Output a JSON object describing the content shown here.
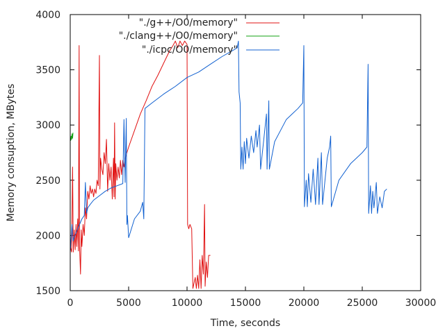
{
  "chart_data": {
    "type": "line",
    "title": "",
    "xlabel": "Time, seconds",
    "ylabel": "Memory consuption, MBytes",
    "xlim": [
      0,
      30000
    ],
    "ylim": [
      1500,
      4000
    ],
    "xticks": [
      0,
      5000,
      10000,
      15000,
      20000,
      25000,
      30000
    ],
    "yticks": [
      1500,
      2000,
      2500,
      3000,
      3500,
      4000
    ],
    "legend_position": "top-left",
    "series": [
      {
        "name": "\"./g++/O0/memory\"",
        "color": "#e01010",
        "points": [
          [
            0,
            1900
          ],
          [
            120,
            1850
          ],
          [
            200,
            2620
          ],
          [
            260,
            1850
          ],
          [
            350,
            2050
          ],
          [
            420,
            1870
          ],
          [
            500,
            2100
          ],
          [
            560,
            1900
          ],
          [
            640,
            2150
          ],
          [
            700,
            1860
          ],
          [
            760,
            3720
          ],
          [
            800,
            1900
          ],
          [
            880,
            1650
          ],
          [
            940,
            2050
          ],
          [
            1000,
            1900
          ],
          [
            1100,
            2100
          ],
          [
            1200,
            2000
          ],
          [
            1300,
            2250
          ],
          [
            1400,
            2150
          ],
          [
            1500,
            2400
          ],
          [
            1600,
            2330
          ],
          [
            1700,
            2450
          ],
          [
            1800,
            2380
          ],
          [
            1900,
            2420
          ],
          [
            2000,
            2350
          ],
          [
            2100,
            2420
          ],
          [
            2200,
            2380
          ],
          [
            2300,
            2500
          ],
          [
            2400,
            2450
          ],
          [
            2500,
            3630
          ],
          [
            2540,
            2420
          ],
          [
            2600,
            2700
          ],
          [
            2700,
            2600
          ],
          [
            2800,
            2550
          ],
          [
            2900,
            2750
          ],
          [
            3000,
            2650
          ],
          [
            3100,
            2870
          ],
          [
            3200,
            2400
          ],
          [
            3300,
            2650
          ],
          [
            3400,
            2500
          ],
          [
            3500,
            2620
          ],
          [
            3600,
            2330
          ],
          [
            3700,
            2700
          ],
          [
            3750,
            2350
          ],
          [
            3800,
            3020
          ],
          [
            3850,
            2330
          ],
          [
            3900,
            2650
          ],
          [
            4000,
            2500
          ],
          [
            4100,
            2620
          ],
          [
            4200,
            2520
          ],
          [
            4300,
            2680
          ],
          [
            4400,
            2550
          ],
          [
            4500,
            2680
          ],
          [
            4600,
            2620
          ],
          [
            4700,
            2700
          ],
          [
            5000,
            2800
          ],
          [
            5500,
            2950
          ],
          [
            6000,
            3100
          ],
          [
            6500,
            3220
          ],
          [
            7000,
            3350
          ],
          [
            7500,
            3450
          ],
          [
            8000,
            3560
          ],
          [
            8500,
            3670
          ],
          [
            8800,
            3720
          ],
          [
            9000,
            3760
          ],
          [
            9200,
            3700
          ],
          [
            9400,
            3760
          ],
          [
            9600,
            3720
          ],
          [
            9800,
            3760
          ],
          [
            10000,
            3730
          ],
          [
            10050,
            2100
          ],
          [
            10150,
            2060
          ],
          [
            10250,
            2100
          ],
          [
            10400,
            2060
          ],
          [
            10500,
            1520
          ],
          [
            10700,
            1620
          ],
          [
            10800,
            1520
          ],
          [
            10900,
            1640
          ],
          [
            11000,
            1520
          ],
          [
            11100,
            1780
          ],
          [
            11200,
            1520
          ],
          [
            11300,
            1820
          ],
          [
            11400,
            1650
          ],
          [
            11500,
            2280
          ],
          [
            11550,
            1540
          ],
          [
            11650,
            1760
          ],
          [
            11750,
            1620
          ],
          [
            11850,
            1820
          ],
          [
            12000,
            1820
          ]
        ]
      },
      {
        "name": "\"./clang++/O0/memory\"",
        "color": "#10a010",
        "points": [
          [
            0,
            2880
          ],
          [
            40,
            2860
          ],
          [
            80,
            2900
          ],
          [
            120,
            2870
          ],
          [
            160,
            2920
          ],
          [
            200,
            2880
          ],
          [
            240,
            2930
          ]
        ]
      },
      {
        "name": "\"./icpc/O0/memory\"",
        "color": "#1060d0",
        "points": [
          [
            0,
            1850
          ],
          [
            150,
            2100
          ],
          [
            250,
            1950
          ],
          [
            400,
            2000
          ],
          [
            600,
            2050
          ],
          [
            800,
            2100
          ],
          [
            1000,
            2150
          ],
          [
            1200,
            2180
          ],
          [
            1300,
            2480
          ],
          [
            1400,
            2200
          ],
          [
            1500,
            2250
          ],
          [
            1700,
            2280
          ],
          [
            2000,
            2320
          ],
          [
            2500,
            2360
          ],
          [
            3000,
            2400
          ],
          [
            3500,
            2430
          ],
          [
            4000,
            2450
          ],
          [
            4500,
            2470
          ],
          [
            4600,
            3050
          ],
          [
            4700,
            2480
          ],
          [
            4800,
            3060
          ],
          [
            4850,
            2100
          ],
          [
            4900,
            2180
          ],
          [
            5000,
            1980
          ],
          [
            5500,
            2150
          ],
          [
            6000,
            2220
          ],
          [
            6200,
            2300
          ],
          [
            6300,
            2150
          ],
          [
            6400,
            3150
          ],
          [
            7000,
            3200
          ],
          [
            8000,
            3280
          ],
          [
            9000,
            3350
          ],
          [
            10000,
            3430
          ],
          [
            11000,
            3480
          ],
          [
            12000,
            3550
          ],
          [
            13000,
            3620
          ],
          [
            14000,
            3680
          ],
          [
            14300,
            3700
          ],
          [
            14400,
            3760
          ],
          [
            14450,
            3300
          ],
          [
            14550,
            3200
          ],
          [
            14600,
            2600
          ],
          [
            14700,
            2800
          ],
          [
            14800,
            2600
          ],
          [
            14900,
            2850
          ],
          [
            15000,
            2650
          ],
          [
            15100,
            2880
          ],
          [
            15300,
            2700
          ],
          [
            15500,
            2900
          ],
          [
            15700,
            2750
          ],
          [
            15900,
            2950
          ],
          [
            16000,
            2800
          ],
          [
            16200,
            3000
          ],
          [
            16300,
            2600
          ],
          [
            16600,
            2900
          ],
          [
            16800,
            3100
          ],
          [
            16850,
            2600
          ],
          [
            17000,
            3220
          ],
          [
            17050,
            2600
          ],
          [
            17500,
            2850
          ],
          [
            18000,
            2950
          ],
          [
            18500,
            3050
          ],
          [
            19000,
            3100
          ],
          [
            19500,
            3150
          ],
          [
            19900,
            3200
          ],
          [
            20000,
            3720
          ],
          [
            20050,
            2260
          ],
          [
            20200,
            2500
          ],
          [
            20300,
            2260
          ],
          [
            20400,
            2560
          ],
          [
            20600,
            2300
          ],
          [
            20800,
            2600
          ],
          [
            21000,
            2280
          ],
          [
            21200,
            2700
          ],
          [
            21300,
            2280
          ],
          [
            21500,
            2750
          ],
          [
            21600,
            2280
          ],
          [
            22000,
            2700
          ],
          [
            22200,
            2800
          ],
          [
            22300,
            2900
          ],
          [
            22350,
            2260
          ],
          [
            23000,
            2500
          ],
          [
            24000,
            2650
          ],
          [
            25000,
            2750
          ],
          [
            25400,
            2800
          ],
          [
            25500,
            3550
          ],
          [
            25550,
            2200
          ],
          [
            25700,
            2450
          ],
          [
            25800,
            2200
          ],
          [
            25900,
            2400
          ],
          [
            26000,
            2250
          ],
          [
            26200,
            2480
          ],
          [
            26300,
            2200
          ],
          [
            26500,
            2350
          ],
          [
            26700,
            2250
          ],
          [
            26900,
            2400
          ],
          [
            27100,
            2420
          ]
        ]
      }
    ]
  }
}
